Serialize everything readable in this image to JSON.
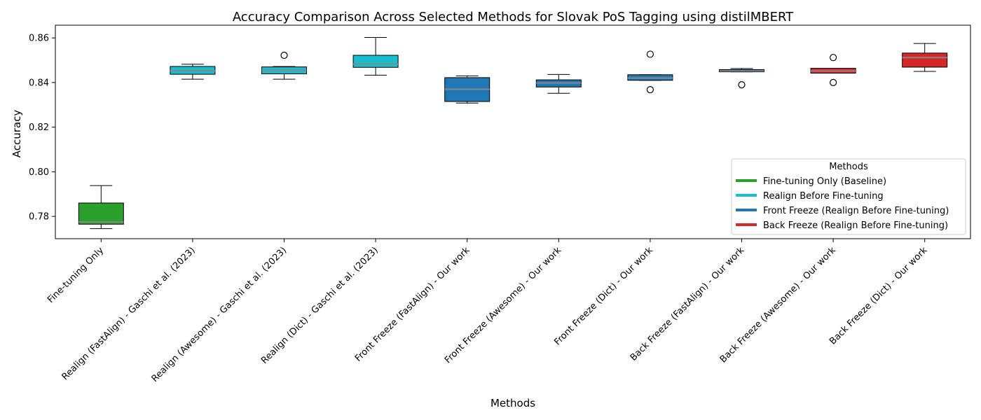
{
  "chart_data": {
    "type": "box",
    "title": "Accuracy Comparison Across Selected Methods for Slovak PoS Tagging using distilMBERT",
    "xlabel": "Methods",
    "ylabel": "Accuracy",
    "ylim": [
      0.77,
      0.8657
    ],
    "yticks": [
      "0.78",
      "0.80",
      "0.82",
      "0.84",
      "0.86"
    ],
    "grid": false,
    "categories": [
      "Fine-tuning Only",
      "Realign (FastAlign) - Gaschi et al. (2023)",
      "Realign (Awesome) - Gaschi et al. (2023)",
      "Realign (Dict) - Gaschi et al. (2023)",
      "Front Freeze (FastAlign) - Our work",
      "Front Freeze (Awesome) - Our work",
      "Front Freeze (Dict) - Our work",
      "Back Freeze (FastAlign) - Our work",
      "Back Freeze (Awesome) - Our work",
      "Back Freeze (Dict) - Our work"
    ],
    "boxes": [
      {
        "whislo": 0.7745,
        "q1": 0.7765,
        "med": 0.7775,
        "q3": 0.786,
        "whishi": 0.7938,
        "fliers": [],
        "color": "#2ca02c"
      },
      {
        "whislo": 0.8415,
        "q1": 0.8437,
        "med": 0.8453,
        "q3": 0.8472,
        "whishi": 0.8482,
        "fliers": [],
        "color": "#17becf"
      },
      {
        "whislo": 0.8415,
        "q1": 0.8439,
        "med": 0.8455,
        "q3": 0.847,
        "whishi": 0.8472,
        "fliers": [
          0.8522
        ],
        "color": "#17becf"
      },
      {
        "whislo": 0.8433,
        "q1": 0.8468,
        "med": 0.8483,
        "q3": 0.8522,
        "whishi": 0.8602,
        "fliers": [],
        "color": "#17becf"
      },
      {
        "whislo": 0.8308,
        "q1": 0.8315,
        "med": 0.837,
        "q3": 0.8422,
        "whishi": 0.843,
        "fliers": [],
        "color": "#1f77b4"
      },
      {
        "whislo": 0.8352,
        "q1": 0.838,
        "med": 0.8398,
        "q3": 0.8412,
        "whishi": 0.8436,
        "fliers": [],
        "color": "#1f77b4"
      },
      {
        "whislo": 0.841,
        "q1": 0.841,
        "med": 0.842,
        "q3": 0.8435,
        "whishi": 0.8435,
        "fliers": [
          0.8527,
          0.8368
        ],
        "color": "#1f77b4"
      },
      {
        "whislo": 0.8448,
        "q1": 0.8448,
        "med": 0.8452,
        "q3": 0.8458,
        "whishi": 0.8463,
        "fliers": [
          0.839
        ],
        "color": "#1f77b4"
      },
      {
        "whislo": 0.8442,
        "q1": 0.8442,
        "med": 0.8452,
        "q3": 0.8464,
        "whishi": 0.8464,
        "fliers": [
          0.8512,
          0.84
        ],
        "color": "#d62728"
      },
      {
        "whislo": 0.845,
        "q1": 0.8469,
        "med": 0.8512,
        "q3": 0.8532,
        "whishi": 0.8575,
        "fliers": [],
        "color": "#d62728"
      }
    ],
    "median_color": "#888888",
    "legend": {
      "title": "Methods",
      "placement": "lower-right",
      "entries": [
        {
          "label": "Fine-tuning Only (Baseline)",
          "color": "#2ca02c"
        },
        {
          "label": "Realign Before Fine-tuning",
          "color": "#17becf"
        },
        {
          "label": "Front Freeze (Realign Before Fine-tuning)",
          "color": "#1f77b4"
        },
        {
          "label": "Back Freeze (Realign Before Fine-tuning)",
          "color": "#d62728"
        }
      ]
    }
  }
}
